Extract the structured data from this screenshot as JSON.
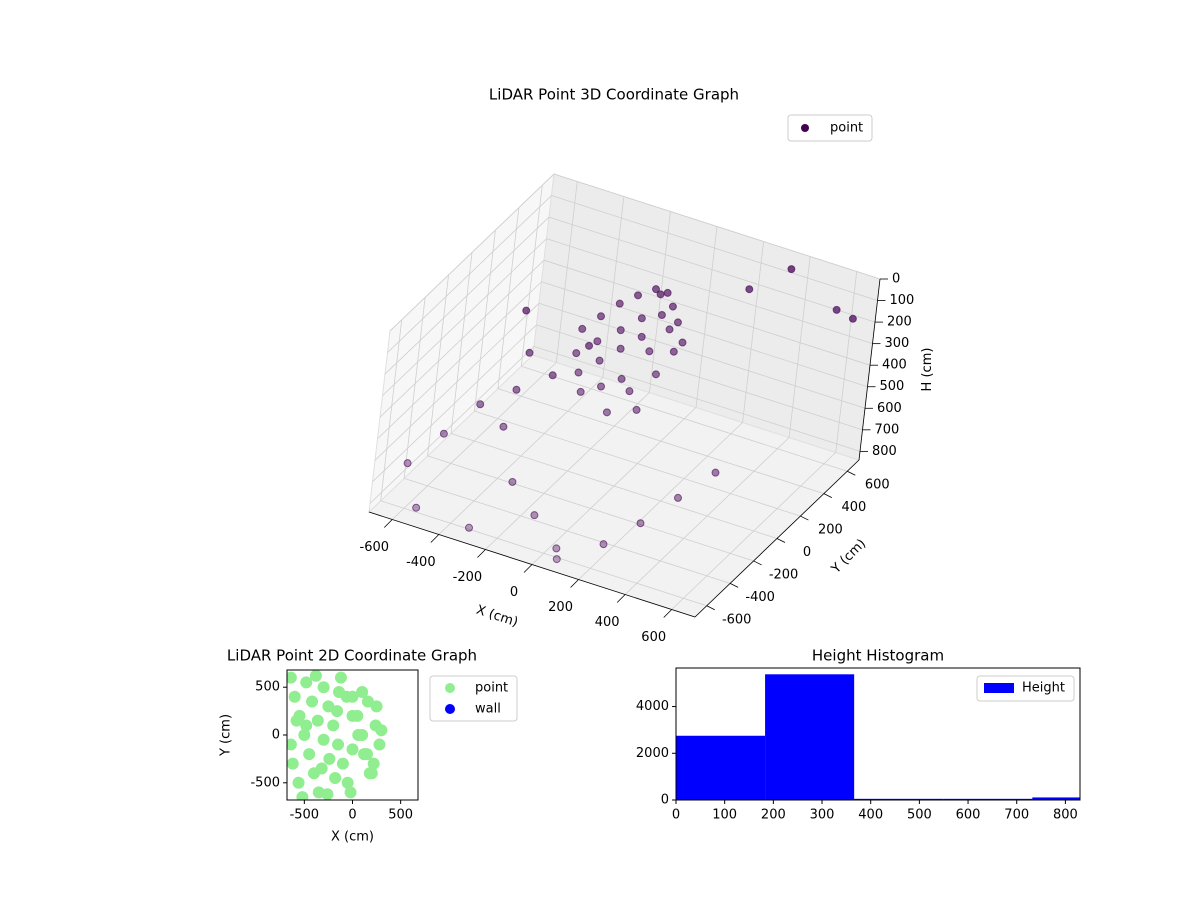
{
  "chart_data": [
    {
      "type": "scatter3d",
      "title": "LiDAR Point 3D Coordinate Graph",
      "xlabel": "X (cm)",
      "ylabel": "Y (cm)",
      "zlabel": "H (cm)",
      "xlim": [
        -700,
        700
      ],
      "ylim": [
        -700,
        700
      ],
      "zlim": [
        840,
        0
      ],
      "xticks": [
        -600,
        -400,
        -200,
        0,
        200,
        400,
        600
      ],
      "yticks": [
        -600,
        -400,
        -200,
        0,
        200,
        400,
        600
      ],
      "zticks": [
        0,
        100,
        200,
        300,
        400,
        500,
        600,
        700,
        800
      ],
      "grid": true,
      "legend": "upper right",
      "series": [
        {
          "name": "point",
          "color": "#440154",
          "x": [
            -250,
            -200,
            -150,
            -100,
            -50,
            0,
            50,
            100,
            150,
            -220,
            -160,
            -90,
            -30,
            30,
            90,
            140,
            -180,
            -120,
            -60,
            0,
            60,
            120,
            -140,
            -80,
            -20,
            40,
            100,
            -300,
            -350,
            -450,
            -550,
            -600,
            -650,
            -500,
            -400,
            -250,
            -100,
            50,
            200,
            300,
            400,
            500,
            600,
            650,
            -620,
            -550,
            -300,
            100,
            350,
            250,
            -50,
            0
          ],
          "y": [
            100,
            150,
            200,
            250,
            300,
            300,
            250,
            200,
            150,
            0,
            50,
            100,
            150,
            200,
            150,
            100,
            -50,
            0,
            50,
            100,
            50,
            0,
            -100,
            -50,
            0,
            -50,
            -100,
            300,
            100,
            0,
            -100,
            -300,
            -500,
            200,
            -200,
            -400,
            -500,
            -600,
            -500,
            -400,
            -300,
            -200,
            550,
            600,
            400,
            -600,
            -650,
            -700,
            650,
            500,
            350,
            -150
          ],
          "z": [
            250,
            200,
            150,
            120,
            100,
            100,
            120,
            150,
            200,
            300,
            250,
            200,
            150,
            140,
            160,
            220,
            350,
            300,
            250,
            200,
            220,
            280,
            400,
            380,
            350,
            360,
            400,
            450,
            500,
            550,
            600,
            650,
            700,
            500,
            600,
            700,
            750,
            800,
            780,
            700,
            600,
            500,
            100,
            150,
            450,
            820,
            800,
            780,
            50,
            100,
            150,
            420
          ]
        }
      ]
    },
    {
      "type": "scatter",
      "title": "LiDAR Point 2D Coordinate Graph",
      "xlabel": "X (cm)",
      "ylabel": "Y (cm)",
      "xlim": [
        -680,
        680
      ],
      "ylim": [
        -680,
        680
      ],
      "xticks": [
        -500,
        0,
        500
      ],
      "yticks": [
        -500,
        0,
        500
      ],
      "legend": "outside right",
      "series": [
        {
          "name": "point",
          "color": "#90ee90",
          "x": [
            -640,
            -600,
            -550,
            -500,
            -450,
            -400,
            -350,
            -300,
            -250,
            -200,
            -150,
            -100,
            -50,
            0,
            50,
            100,
            150,
            200,
            250,
            280,
            -620,
            -560,
            -480,
            -420,
            -360,
            -300,
            -240,
            -180,
            -120,
            -60,
            0,
            60,
            120,
            180,
            240,
            -520,
            -380,
            -260,
            -140,
            -20,
            100,
            220,
            -640,
            -480,
            -320,
            -160,
            0,
            160,
            300,
            -580
          ],
          "y": [
            600,
            400,
            200,
            0,
            -200,
            -400,
            -600,
            500,
            300,
            100,
            -100,
            -300,
            -500,
            400,
            200,
            0,
            -200,
            -400,
            300,
            -100,
            -300,
            -500,
            550,
            350,
            150,
            -50,
            -250,
            -450,
            600,
            400,
            200,
            0,
            -200,
            -400,
            100,
            -650,
            620,
            -620,
            450,
            -600,
            450,
            -300,
            -100,
            100,
            -350,
            250,
            -150,
            350,
            50,
            150
          ],
          "marker_size": 6
        },
        {
          "name": "wall",
          "color": "#0000ff",
          "x": [],
          "y": [],
          "marker_size": 6
        }
      ]
    },
    {
      "type": "histogram",
      "title": "Height Histogram",
      "bins": [
        0,
        183,
        366,
        549,
        732,
        915
      ],
      "counts": [
        2750,
        5380,
        50,
        50,
        110
      ],
      "name": "Height",
      "color": "#0000ff",
      "xlim": [
        0,
        830
      ],
      "ylim": [
        0,
        5650
      ],
      "xticks": [
        0,
        100,
        200,
        300,
        400,
        500,
        600,
        700,
        800
      ],
      "yticks": [
        0,
        2000,
        4000
      ],
      "legend": "upper right"
    }
  ]
}
